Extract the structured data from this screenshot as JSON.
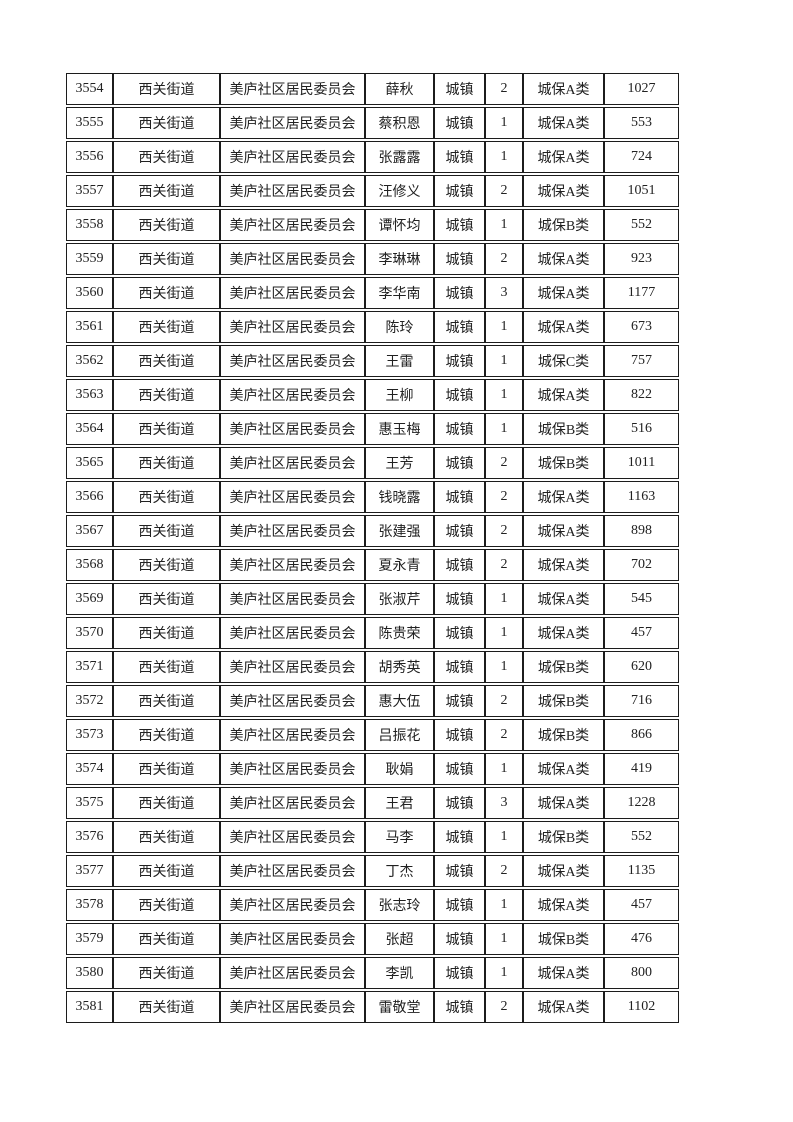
{
  "page": {
    "background_color": "#ffffff",
    "border_color": "#1c1c1c",
    "text_color": "#212121"
  },
  "table": {
    "rows": [
      [
        "3554",
        "西关街道",
        "美庐社区居民委员会",
        "薛秋",
        "城镇",
        "2",
        "城保A类",
        "1027"
      ],
      [
        "3555",
        "西关街道",
        "美庐社区居民委员会",
        "蔡积恩",
        "城镇",
        "1",
        "城保A类",
        "553"
      ],
      [
        "3556",
        "西关街道",
        "美庐社区居民委员会",
        "张露露",
        "城镇",
        "1",
        "城保A类",
        "724"
      ],
      [
        "3557",
        "西关街道",
        "美庐社区居民委员会",
        "汪修义",
        "城镇",
        "2",
        "城保A类",
        "1051"
      ],
      [
        "3558",
        "西关街道",
        "美庐社区居民委员会",
        "谭怀均",
        "城镇",
        "1",
        "城保B类",
        "552"
      ],
      [
        "3559",
        "西关街道",
        "美庐社区居民委员会",
        "李琳琳",
        "城镇",
        "2",
        "城保A类",
        "923"
      ],
      [
        "3560",
        "西关街道",
        "美庐社区居民委员会",
        "李华南",
        "城镇",
        "3",
        "城保A类",
        "1177"
      ],
      [
        "3561",
        "西关街道",
        "美庐社区居民委员会",
        "陈玲",
        "城镇",
        "1",
        "城保A类",
        "673"
      ],
      [
        "3562",
        "西关街道",
        "美庐社区居民委员会",
        "王雷",
        "城镇",
        "1",
        "城保C类",
        "757"
      ],
      [
        "3563",
        "西关街道",
        "美庐社区居民委员会",
        "王柳",
        "城镇",
        "1",
        "城保A类",
        "822"
      ],
      [
        "3564",
        "西关街道",
        "美庐社区居民委员会",
        "惠玉梅",
        "城镇",
        "1",
        "城保B类",
        "516"
      ],
      [
        "3565",
        "西关街道",
        "美庐社区居民委员会",
        "王芳",
        "城镇",
        "2",
        "城保B类",
        "1011"
      ],
      [
        "3566",
        "西关街道",
        "美庐社区居民委员会",
        "钱晓露",
        "城镇",
        "2",
        "城保A类",
        "1163"
      ],
      [
        "3567",
        "西关街道",
        "美庐社区居民委员会",
        "张建强",
        "城镇",
        "2",
        "城保A类",
        "898"
      ],
      [
        "3568",
        "西关街道",
        "美庐社区居民委员会",
        "夏永青",
        "城镇",
        "2",
        "城保A类",
        "702"
      ],
      [
        "3569",
        "西关街道",
        "美庐社区居民委员会",
        "张淑芹",
        "城镇",
        "1",
        "城保A类",
        "545"
      ],
      [
        "3570",
        "西关街道",
        "美庐社区居民委员会",
        "陈贵荣",
        "城镇",
        "1",
        "城保A类",
        "457"
      ],
      [
        "3571",
        "西关街道",
        "美庐社区居民委员会",
        "胡秀英",
        "城镇",
        "1",
        "城保B类",
        "620"
      ],
      [
        "3572",
        "西关街道",
        "美庐社区居民委员会",
        "惠大伍",
        "城镇",
        "2",
        "城保B类",
        "716"
      ],
      [
        "3573",
        "西关街道",
        "美庐社区居民委员会",
        "吕振花",
        "城镇",
        "2",
        "城保B类",
        "866"
      ],
      [
        "3574",
        "西关街道",
        "美庐社区居民委员会",
        "耿娟",
        "城镇",
        "1",
        "城保A类",
        "419"
      ],
      [
        "3575",
        "西关街道",
        "美庐社区居民委员会",
        "王君",
        "城镇",
        "3",
        "城保A类",
        "1228"
      ],
      [
        "3576",
        "西关街道",
        "美庐社区居民委员会",
        "马李",
        "城镇",
        "1",
        "城保B类",
        "552"
      ],
      [
        "3577",
        "西关街道",
        "美庐社区居民委员会",
        "丁杰",
        "城镇",
        "2",
        "城保A类",
        "1135"
      ],
      [
        "3578",
        "西关街道",
        "美庐社区居民委员会",
        "张志玲",
        "城镇",
        "1",
        "城保A类",
        "457"
      ],
      [
        "3579",
        "西关街道",
        "美庐社区居民委员会",
        "张超",
        "城镇",
        "1",
        "城保B类",
        "476"
      ],
      [
        "3580",
        "西关街道",
        "美庐社区居民委员会",
        "李凯",
        "城镇",
        "1",
        "城保A类",
        "800"
      ],
      [
        "3581",
        "西关街道",
        "美庐社区居民委员会",
        "雷敬堂",
        "城镇",
        "2",
        "城保A类",
        "1102"
      ]
    ]
  }
}
